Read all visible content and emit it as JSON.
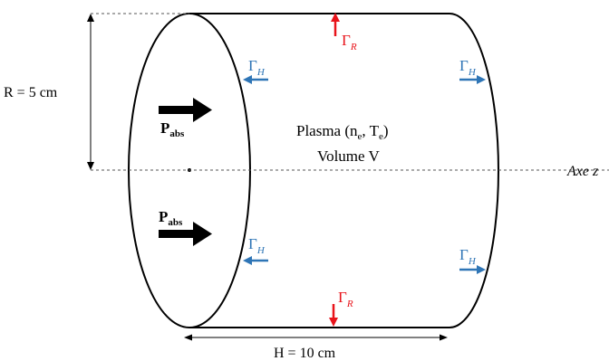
{
  "labels": {
    "radius": "R = 5 cm",
    "height": "H = 10 cm",
    "plasma_prefix": "Plasma (n",
    "plasma_sub1": "e",
    "plasma_mid": ", T",
    "plasma_sub2": "e",
    "plasma_suffix": ")",
    "volume": "Volume V",
    "axis": "Axe z"
  },
  "symbols": {
    "power_main": "P",
    "power_sub": "abs",
    "flux_main": "Γ",
    "flux_sub_radial": "R",
    "flux_sub_axial": "H"
  },
  "colors": {
    "outline": "#000000",
    "radial_flux": "#e8141b",
    "axial_flux": "#2e75b6",
    "dashed": "#555555"
  }
}
